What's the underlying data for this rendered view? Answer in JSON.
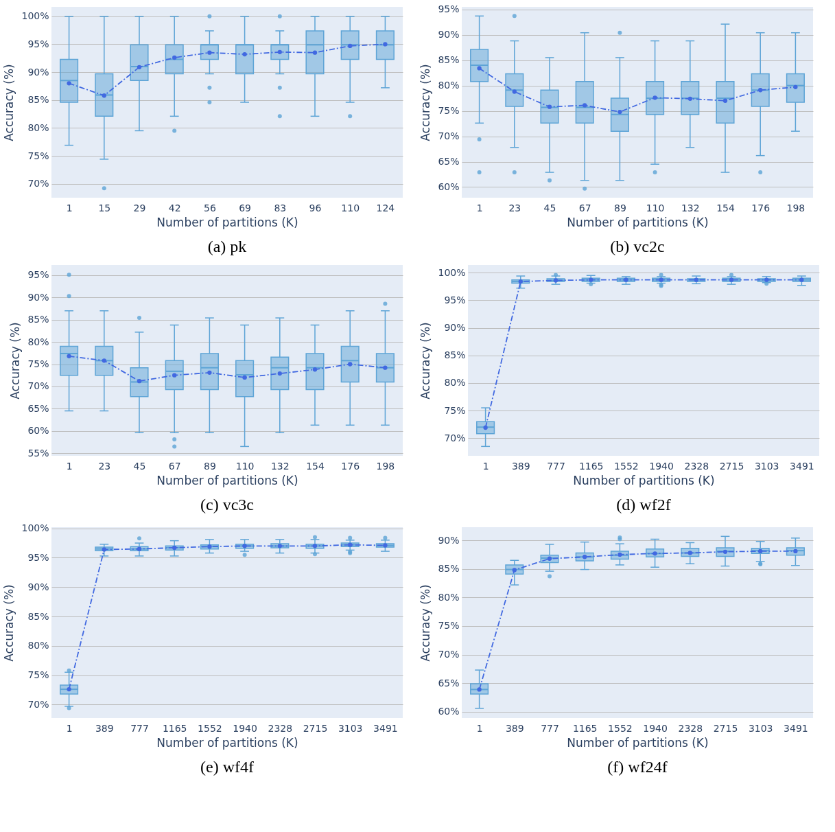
{
  "chart_data": [
    {
      "type": "box",
      "title": "(a) pk",
      "xlabel": "Number of partitions (K)",
      "ylabel": "Accuracy (%)",
      "categories": [
        "1",
        "15",
        "29",
        "42",
        "56",
        "69",
        "83",
        "96",
        "110",
        "124"
      ],
      "ylim": [
        67.5,
        101.7
      ],
      "yticks": [
        {
          "value": 70,
          "label": "70%"
        },
        {
          "value": 75,
          "label": "75%"
        },
        {
          "value": 80,
          "label": "80%"
        },
        {
          "value": 85,
          "label": "85%"
        },
        {
          "value": 90,
          "label": "90%"
        },
        {
          "value": 95,
          "label": "95%"
        },
        {
          "value": 100,
          "label": "100%"
        }
      ],
      "grid": "y",
      "series": [
        {
          "type": "box",
          "color": "#5da4d6",
          "boxes": [
            {
              "low": 76.9,
              "q1": 84.6,
              "median": 88.5,
              "q3": 92.3,
              "high": 100
            },
            {
              "low": 74.4,
              "q1": 82.1,
              "median": 85.9,
              "q3": 89.7,
              "high": 100,
              "outliers": [
                69.2
              ]
            },
            {
              "low": 79.5,
              "q1": 88.5,
              "median": 91.0,
              "q3": 94.9,
              "high": 100
            },
            {
              "low": 82.1,
              "q1": 89.7,
              "median": 92.3,
              "q3": 94.9,
              "high": 100,
              "outliers": [
                79.5
              ]
            },
            {
              "low": 89.7,
              "q1": 92.3,
              "median": 94.9,
              "q3": 94.9,
              "high": 97.4,
              "outliers": [
                100,
                87.2,
                84.6
              ]
            },
            {
              "low": 84.6,
              "q1": 89.7,
              "median": 94.9,
              "q3": 94.9,
              "high": 100
            },
            {
              "low": 89.7,
              "q1": 92.3,
              "median": 94.9,
              "q3": 94.9,
              "high": 97.4,
              "outliers": [
                100,
                87.2,
                82.1
              ]
            },
            {
              "low": 82.1,
              "q1": 89.7,
              "median": 94.9,
              "q3": 97.4,
              "high": 100
            },
            {
              "low": 84.6,
              "q1": 92.3,
              "median": 94.9,
              "q3": 97.4,
              "high": 100,
              "outliers": [
                82.1
              ]
            },
            {
              "low": 87.2,
              "q1": 92.3,
              "median": 94.9,
              "q3": 97.4,
              "high": 100
            }
          ]
        },
        {
          "type": "line",
          "color": "#4169e1",
          "marker": "circle",
          "line_style": "dashed",
          "values": [
            88.0,
            85.8,
            90.9,
            92.6,
            93.5,
            93.2,
            93.6,
            93.5,
            94.7,
            95.0
          ]
        }
      ]
    },
    {
      "type": "box",
      "title": "(b) vc2c",
      "xlabel": "Number of partitions (K)",
      "ylabel": "Accuracy (%)",
      "categories": [
        "1",
        "23",
        "45",
        "67",
        "89",
        "110",
        "132",
        "154",
        "176",
        "198"
      ],
      "ylim": [
        57.9,
        95.5
      ],
      "yticks": [
        {
          "value": 60,
          "label": "60%"
        },
        {
          "value": 65,
          "label": "65%"
        },
        {
          "value": 70,
          "label": "70%"
        },
        {
          "value": 75,
          "label": "75%"
        },
        {
          "value": 80,
          "label": "80%"
        },
        {
          "value": 85,
          "label": "85%"
        },
        {
          "value": 90,
          "label": "90%"
        },
        {
          "value": 95,
          "label": "95%"
        }
      ],
      "grid": "y",
      "series": [
        {
          "type": "box",
          "color": "#5da4d6",
          "boxes": [
            {
              "low": 72.6,
              "q1": 80.8,
              "median": 84.0,
              "q3": 87.1,
              "high": 93.7,
              "outliers": [
                69.4,
                62.9
              ]
            },
            {
              "low": 67.8,
              "q1": 75.9,
              "median": 79.1,
              "q3": 82.3,
              "high": 88.8,
              "outliers": [
                93.7,
                62.9
              ]
            },
            {
              "low": 62.9,
              "q1": 72.6,
              "median": 75.7,
              "q3": 79.1,
              "high": 85.5,
              "outliers": [
                61.3
              ]
            },
            {
              "low": 61.3,
              "q1": 72.6,
              "median": 75.7,
              "q3": 80.8,
              "high": 90.4,
              "outliers": [
                59.7
              ]
            },
            {
              "low": 61.3,
              "q1": 71.0,
              "median": 74.3,
              "q3": 77.5,
              "high": 85.5,
              "outliers": [
                90.4
              ]
            },
            {
              "low": 64.5,
              "q1": 74.3,
              "median": 77.5,
              "q3": 80.8,
              "high": 88.8,
              "outliers": [
                62.9
              ]
            },
            {
              "low": 67.8,
              "q1": 74.3,
              "median": 77.5,
              "q3": 80.8,
              "high": 88.8
            },
            {
              "low": 62.9,
              "q1": 72.6,
              "median": 77.5,
              "q3": 80.8,
              "high": 92.1
            },
            {
              "low": 66.2,
              "q1": 75.9,
              "median": 79.1,
              "q3": 82.3,
              "high": 90.4,
              "outliers": [
                62.9
              ]
            },
            {
              "low": 71.0,
              "q1": 76.7,
              "median": 80.0,
              "q3": 82.3,
              "high": 90.4
            }
          ]
        },
        {
          "type": "line",
          "color": "#4169e1",
          "marker": "circle",
          "line_style": "dashed",
          "values": [
            83.4,
            78.8,
            75.8,
            76.1,
            74.8,
            77.6,
            77.4,
            77.0,
            79.1,
            79.7
          ]
        }
      ]
    },
    {
      "type": "box",
      "title": "(c) vc3c",
      "xlabel": "Number of partitions (K)",
      "ylabel": "Accuracy (%)",
      "categories": [
        "1",
        "23",
        "45",
        "67",
        "89",
        "110",
        "132",
        "154",
        "176",
        "198"
      ],
      "ylim": [
        54.4,
        97.3
      ],
      "yticks": [
        {
          "value": 55,
          "label": "55%"
        },
        {
          "value": 60,
          "label": "60%"
        },
        {
          "value": 65,
          "label": "65%"
        },
        {
          "value": 70,
          "label": "70%"
        },
        {
          "value": 75,
          "label": "75%"
        },
        {
          "value": 80,
          "label": "80%"
        },
        {
          "value": 85,
          "label": "85%"
        },
        {
          "value": 90,
          "label": "90%"
        },
        {
          "value": 95,
          "label": "95%"
        }
      ],
      "grid": "y",
      "series": [
        {
          "type": "box",
          "color": "#5da4d6",
          "boxes": [
            {
              "low": 64.5,
              "q1": 72.5,
              "median": 77.4,
              "q3": 79.0,
              "high": 87.0,
              "outliers": [
                95.1,
                90.3
              ]
            },
            {
              "low": 64.5,
              "q1": 72.5,
              "median": 75.8,
              "q3": 79.0,
              "high": 87.0
            },
            {
              "low": 59.6,
              "q1": 67.7,
              "median": 71.0,
              "q3": 74.2,
              "high": 82.2,
              "outliers": [
                85.4
              ]
            },
            {
              "low": 59.6,
              "q1": 69.3,
              "median": 73.4,
              "q3": 75.8,
              "high": 83.8,
              "outliers": [
                58.1,
                56.5
              ]
            },
            {
              "low": 59.6,
              "q1": 69.3,
              "median": 74.2,
              "q3": 77.4,
              "high": 85.4
            },
            {
              "low": 56.5,
              "q1": 67.7,
              "median": 72.6,
              "q3": 75.8,
              "high": 83.8
            },
            {
              "low": 59.6,
              "q1": 69.3,
              "median": 74.2,
              "q3": 76.6,
              "high": 85.4
            },
            {
              "low": 61.3,
              "q1": 69.3,
              "median": 74.2,
              "q3": 77.4,
              "high": 83.8
            },
            {
              "low": 61.3,
              "q1": 71.0,
              "median": 75.8,
              "q3": 79.0,
              "high": 87.0
            },
            {
              "low": 61.3,
              "q1": 71.0,
              "median": 74.2,
              "q3": 77.4,
              "high": 87.0,
              "outliers": [
                88.6
              ]
            }
          ]
        },
        {
          "type": "line",
          "color": "#4169e1",
          "marker": "circle",
          "line_style": "dashed",
          "values": [
            76.8,
            75.8,
            71.2,
            72.5,
            73.1,
            72.0,
            72.9,
            73.8,
            75.0,
            74.2
          ]
        }
      ]
    },
    {
      "type": "box",
      "title": "(d) wf2f",
      "xlabel": "Number of partitions (K)",
      "ylabel": "Accuracy (%)",
      "categories": [
        "1",
        "389",
        "777",
        "1165",
        "1552",
        "1940",
        "2328",
        "2715",
        "3103",
        "3491"
      ],
      "ylim": [
        66.8,
        101.4
      ],
      "yticks": [
        {
          "value": 70,
          "label": "70%"
        },
        {
          "value": 75,
          "label": "75%"
        },
        {
          "value": 80,
          "label": "80%"
        },
        {
          "value": 85,
          "label": "85%"
        },
        {
          "value": 90,
          "label": "90%"
        },
        {
          "value": 95,
          "label": "95%"
        },
        {
          "value": 100,
          "label": "100%"
        }
      ],
      "grid": "y",
      "series": [
        {
          "type": "box",
          "color": "#5da4d6",
          "boxes": [
            {
              "low": 68.5,
              "q1": 70.8,
              "median": 72.0,
              "q3": 73.0,
              "high": 75.5
            },
            {
              "low": 97.2,
              "q1": 98.1,
              "median": 98.4,
              "q3": 98.7,
              "high": 99.4
            },
            {
              "low": 97.9,
              "q1": 98.4,
              "median": 98.6,
              "q3": 98.9,
              "high": 99.4,
              "outliers": [
                99.6
              ]
            },
            {
              "low": 98.1,
              "q1": 98.4,
              "median": 98.7,
              "q3": 99.0,
              "high": 99.5,
              "outliers": [
                97.9
              ]
            },
            {
              "low": 97.9,
              "q1": 98.4,
              "median": 98.7,
              "q3": 99.0,
              "high": 99.3
            },
            {
              "low": 98.1,
              "q1": 98.4,
              "median": 98.7,
              "q3": 99.0,
              "high": 99.3,
              "outliers": [
                99.6,
                97.8,
                97.6
              ]
            },
            {
              "low": 98.0,
              "q1": 98.4,
              "median": 98.7,
              "q3": 98.9,
              "high": 99.4
            },
            {
              "low": 97.9,
              "q1": 98.4,
              "median": 98.7,
              "q3": 99.0,
              "high": 99.3,
              "outliers": [
                99.6
              ]
            },
            {
              "low": 98.2,
              "q1": 98.4,
              "median": 98.7,
              "q3": 98.9,
              "high": 99.3,
              "outliers": [
                98.0
              ]
            },
            {
              "low": 97.7,
              "q1": 98.4,
              "median": 98.7,
              "q3": 99.0,
              "high": 99.4
            }
          ]
        },
        {
          "type": "line",
          "color": "#4169e1",
          "marker": "circle",
          "line_style": "dashed",
          "values": [
            71.9,
            98.4,
            98.6,
            98.7,
            98.7,
            98.7,
            98.7,
            98.7,
            98.7,
            98.7
          ]
        }
      ]
    },
    {
      "type": "box",
      "title": "(e) wf4f",
      "xlabel": "Number of partitions (K)",
      "ylabel": "Accuracy (%)",
      "categories": [
        "1",
        "389",
        "777",
        "1165",
        "1552",
        "1940",
        "2328",
        "2715",
        "3103",
        "3491"
      ],
      "ylim": [
        67.7,
        100.2
      ],
      "yticks": [
        {
          "value": 70,
          "label": "70%"
        },
        {
          "value": 75,
          "label": "75%"
        },
        {
          "value": 80,
          "label": "80%"
        },
        {
          "value": 85,
          "label": "85%"
        },
        {
          "value": 90,
          "label": "90%"
        },
        {
          "value": 95,
          "label": "95%"
        },
        {
          "value": 100,
          "label": "100%"
        }
      ],
      "grid": "y",
      "series": [
        {
          "type": "box",
          "color": "#5da4d6",
          "boxes": [
            {
              "low": 69.7,
              "q1": 71.8,
              "median": 72.6,
              "q3": 73.3,
              "high": 75.5,
              "outliers": [
                75.8,
                69.4
              ]
            },
            {
              "low": 95.3,
              "q1": 96.2,
              "median": 96.5,
              "q3": 96.8,
              "high": 97.3
            },
            {
              "low": 95.3,
              "q1": 96.2,
              "median": 96.5,
              "q3": 96.9,
              "high": 97.5,
              "outliers": [
                98.3
              ]
            },
            {
              "low": 95.3,
              "q1": 96.3,
              "median": 96.7,
              "q3": 97.0,
              "high": 97.9
            },
            {
              "low": 95.8,
              "q1": 96.5,
              "median": 96.9,
              "q3": 97.2,
              "high": 98.1
            },
            {
              "low": 96.1,
              "q1": 96.6,
              "median": 97.0,
              "q3": 97.3,
              "high": 98.1,
              "outliers": [
                95.5
              ]
            },
            {
              "low": 95.8,
              "q1": 96.7,
              "median": 97.0,
              "q3": 97.4,
              "high": 98.1
            },
            {
              "low": 95.8,
              "q1": 96.6,
              "median": 97.0,
              "q3": 97.3,
              "high": 98.1,
              "outliers": [
                98.5,
                95.6
              ]
            },
            {
              "low": 96.3,
              "q1": 96.9,
              "median": 97.2,
              "q3": 97.5,
              "high": 98.0,
              "outliers": [
                98.4,
                96.0,
                95.8
              ]
            },
            {
              "low": 96.1,
              "q1": 96.8,
              "median": 97.1,
              "q3": 97.4,
              "high": 98.0,
              "outliers": [
                98.4
              ]
            }
          ]
        },
        {
          "type": "line",
          "color": "#4169e1",
          "marker": "circle",
          "line_style": "dashed",
          "values": [
            72.6,
            96.4,
            96.5,
            96.7,
            96.9,
            97.0,
            97.0,
            97.0,
            97.2,
            97.1
          ]
        }
      ]
    },
    {
      "type": "box",
      "title": "(f) wf24f",
      "xlabel": "Number of partitions (K)",
      "ylabel": "Accuracy (%)",
      "categories": [
        "1",
        "389",
        "777",
        "1165",
        "1552",
        "1940",
        "2328",
        "2715",
        "3103",
        "3491"
      ],
      "ylim": [
        58.9,
        92.3
      ],
      "yticks": [
        {
          "value": 60,
          "label": "60%"
        },
        {
          "value": 65,
          "label": "65%"
        },
        {
          "value": 70,
          "label": "70%"
        },
        {
          "value": 75,
          "label": "75%"
        },
        {
          "value": 80,
          "label": "80%"
        },
        {
          "value": 85,
          "label": "85%"
        },
        {
          "value": 90,
          "label": "90%"
        }
      ],
      "grid": "y",
      "series": [
        {
          "type": "box",
          "color": "#5da4d6",
          "boxes": [
            {
              "low": 60.6,
              "q1": 63.1,
              "median": 63.9,
              "q3": 64.9,
              "high": 67.3
            },
            {
              "low": 82.2,
              "q1": 84.1,
              "median": 84.9,
              "q3": 85.7,
              "high": 86.5
            },
            {
              "low": 84.6,
              "q1": 86.1,
              "median": 86.9,
              "q3": 87.4,
              "high": 89.3,
              "outliers": [
                83.7
              ]
            },
            {
              "low": 84.9,
              "q1": 86.4,
              "median": 87.1,
              "q3": 87.8,
              "high": 89.7
            },
            {
              "low": 85.7,
              "q1": 86.7,
              "median": 87.4,
              "q3": 88.1,
              "high": 89.4,
              "outliers": [
                90.5,
                90.2
              ]
            },
            {
              "low": 85.3,
              "q1": 87.1,
              "median": 87.7,
              "q3": 88.5,
              "high": 90.2
            },
            {
              "low": 85.9,
              "q1": 87.2,
              "median": 87.8,
              "q3": 88.6,
              "high": 89.6
            },
            {
              "low": 85.5,
              "q1": 87.2,
              "median": 88.1,
              "q3": 88.7,
              "high": 90.7
            },
            {
              "low": 86.3,
              "q1": 87.7,
              "median": 88.2,
              "q3": 88.6,
              "high": 89.8,
              "outliers": [
                85.9,
                85.8
              ]
            },
            {
              "low": 85.6,
              "q1": 87.4,
              "median": 88.2,
              "q3": 88.7,
              "high": 90.4
            }
          ]
        },
        {
          "type": "line",
          "color": "#4169e1",
          "marker": "circle",
          "line_style": "dashed",
          "values": [
            63.9,
            84.8,
            86.8,
            87.1,
            87.5,
            87.7,
            87.8,
            88.0,
            88.1,
            88.1
          ]
        }
      ]
    }
  ]
}
